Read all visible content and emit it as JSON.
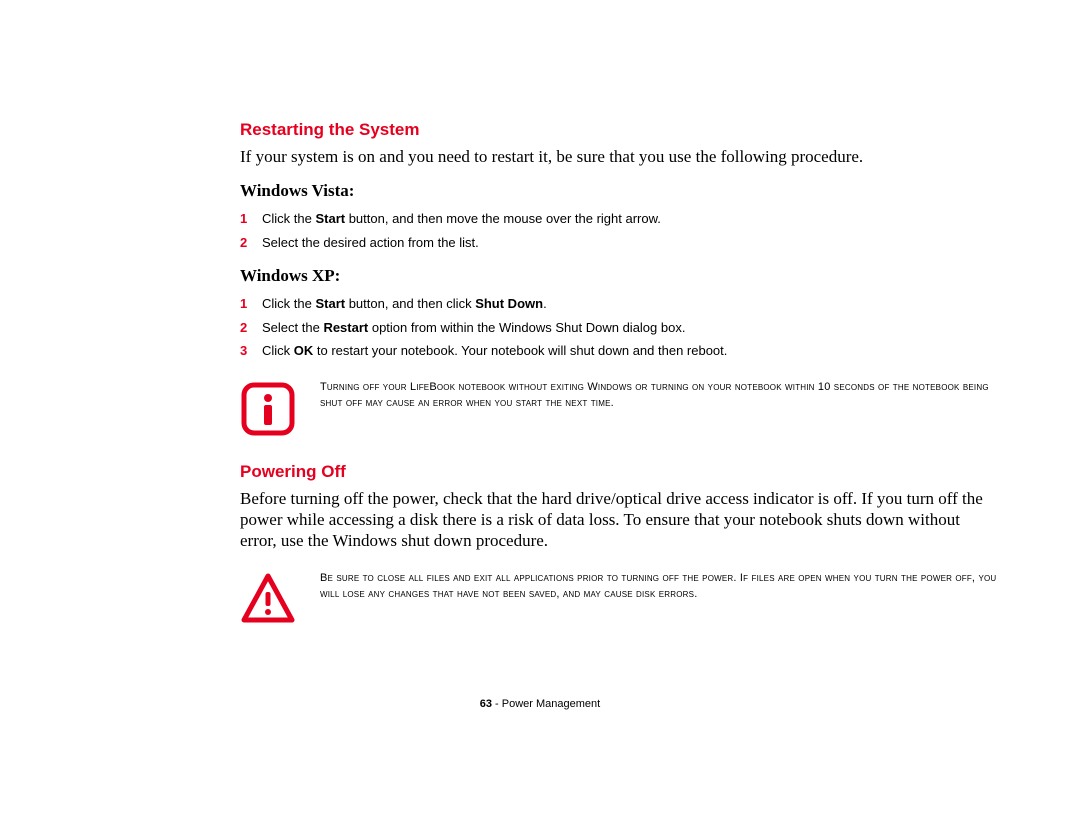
{
  "colors": {
    "accent": "#e6001f",
    "text": "#000000",
    "bg": "#ffffff"
  },
  "section1": {
    "heading": "Restarting the System",
    "intro": "If your system is on and you need to restart it, be sure that you use the following procedure."
  },
  "vista": {
    "heading": "Windows Vista:",
    "steps": [
      {
        "num": "1",
        "html": "Click the <b>Start</b> button, and then move the mouse over the right arrow."
      },
      {
        "num": "2",
        "html": "Select the desired action from the list."
      }
    ]
  },
  "xp": {
    "heading": "Windows XP:",
    "steps": [
      {
        "num": "1",
        "html": "Click the <b>Start</b> button, and then click <b>Shut Down</b>."
      },
      {
        "num": "2",
        "html": "Select the <b>Restart</b> option from within the Windows Shut Down dialog box."
      },
      {
        "num": "3",
        "html": "Click <b>OK</b> to restart your notebook. Your notebook will shut down and then reboot."
      }
    ]
  },
  "info_callout": {
    "text": "Turning off your LifeBook notebook without exiting Windows or turning on your notebook within 10 seconds of the notebook being shut off may cause an error when you start the next time."
  },
  "section2": {
    "heading": "Powering Off",
    "intro": "Before turning off the power, check that the hard drive/optical drive access indicator is off. If you turn off the power while accessing a disk there is a risk of data loss. To ensure that your notebook shuts down without error, use the Windows shut down procedure."
  },
  "warn_callout": {
    "text": "Be sure to close all files and exit all applications prior to turning off the power. If files are open when you turn the power off, you will lose any changes that have not been saved, and may cause disk errors."
  },
  "footer": {
    "page": "63",
    "sep": " - ",
    "title": "Power Management"
  }
}
